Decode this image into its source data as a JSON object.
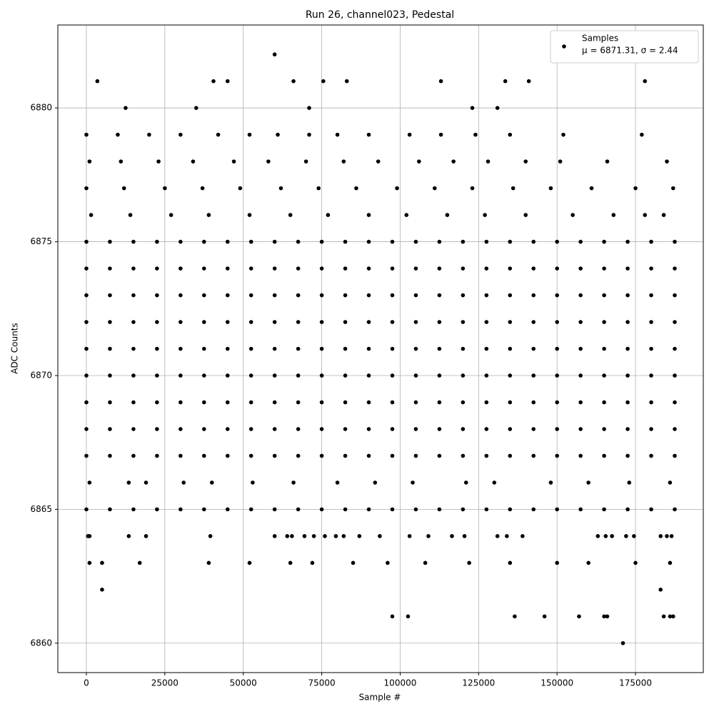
{
  "chart_data": {
    "type": "scatter",
    "title": "Run 26, channel023, Pedestal",
    "xlabel": "Sample #",
    "ylabel": "ADC Counts",
    "xlim": [
      -9100,
      196600
    ],
    "ylim": [
      6858.9,
      6883.1
    ],
    "xticks": [
      0,
      25000,
      50000,
      75000,
      100000,
      125000,
      150000,
      175000
    ],
    "yticks": [
      6860,
      6865,
      6870,
      6875,
      6880
    ],
    "grid": true,
    "legend": "upper right",
    "legend_note": "μ = 6871.31, σ = 2.44",
    "series": [
      {
        "name": "Samples",
        "color": "#000000",
        "x": [
          0,
          7500,
          15000,
          22500,
          30000,
          37500,
          45000,
          52500,
          60000,
          67500,
          75000,
          82500,
          90000,
          97500,
          105000,
          112500,
          120000,
          127500,
          135000,
          142500,
          150000,
          157500,
          165000,
          172500,
          180000,
          187500,
          0,
          7500,
          15000,
          22500,
          30000,
          37500,
          45000,
          52500,
          60000,
          67500,
          75000,
          82500,
          90000,
          97500,
          105000,
          112500,
          120000,
          127500,
          135000,
          142500,
          150000,
          157500,
          165000,
          172500,
          180000,
          187500,
          0,
          7500,
          15000,
          22500,
          30000,
          37500,
          45000,
          52500,
          60000,
          67500,
          75000,
          82500,
          90000,
          97500,
          105000,
          112500,
          120000,
          127500,
          135000,
          142500,
          150000,
          157500,
          165000,
          172500,
          180000,
          187500,
          0,
          7500,
          15000,
          22500,
          30000,
          37500,
          45000,
          52500,
          60000,
          67500,
          75000,
          82500,
          90000,
          97500,
          105000,
          112500,
          120000,
          127500,
          135000,
          142500,
          150000,
          157500,
          165000,
          172500,
          180000,
          187500,
          0,
          7500,
          15000,
          22500,
          30000,
          37500,
          45000,
          52500,
          60000,
          67500,
          75000,
          82500,
          90000,
          97500,
          105000,
          112500,
          120000,
          127500,
          135000,
          142500,
          150000,
          157500,
          165000,
          172500,
          180000,
          187500,
          0,
          7500,
          15000,
          22500,
          30000,
          37500,
          45000,
          52500,
          60000,
          67500,
          75000,
          82500,
          90000,
          97500,
          105000,
          112500,
          120000,
          127500,
          135000,
          142500,
          150000,
          157500,
          165000,
          172500,
          180000,
          187500,
          0,
          7500,
          15000,
          22500,
          30000,
          37500,
          45000,
          52500,
          60000,
          67500,
          75000,
          82500,
          90000,
          97500,
          105000,
          112500,
          120000,
          127500,
          135000,
          142500,
          150000,
          157500,
          165000,
          172500,
          180000,
          187500,
          0,
          7500,
          15000,
          22500,
          30000,
          37500,
          45000,
          52500,
          60000,
          67500,
          75000,
          82500,
          90000,
          97500,
          105000,
          112500,
          120000,
          127500,
          135000,
          142500,
          150000,
          157500,
          165000,
          172500,
          180000,
          187500,
          0,
          7500,
          15000,
          22500,
          30000,
          37500,
          45000,
          52500,
          60000,
          67500,
          75000,
          82500,
          90000,
          97500,
          105000,
          112500,
          120000,
          127500,
          135000,
          142500,
          150000,
          157500,
          165000,
          172500,
          180000,
          187500,
          0,
          7500,
          15000,
          22500,
          30000,
          37500,
          45000,
          52500,
          60000,
          67500,
          75000,
          82500,
          90000,
          97500,
          105000,
          112500,
          120000,
          127500,
          135000,
          142500,
          150000,
          157500,
          165000,
          172500,
          180000,
          187500,
          0,
          10000,
          20000,
          30000,
          42000,
          52000,
          61000,
          71000,
          80000,
          90000,
          103000,
          113000,
          124000,
          135000,
          152000,
          177000,
          1000,
          11000,
          23000,
          34000,
          47000,
          58000,
          70000,
          82000,
          93000,
          106000,
          117000,
          128000,
          140000,
          151000,
          166000,
          185000,
          0,
          12000,
          25000,
          37000,
          49000,
          62000,
          74000,
          86000,
          99000,
          111000,
          123000,
          136000,
          148000,
          161000,
          175000,
          187000,
          1500,
          14000,
          27000,
          39000,
          52000,
          65000,
          77000,
          90000,
          102000,
          115000,
          127000,
          140000,
          155000,
          168000,
          178000,
          184000,
          1000,
          13500,
          19000,
          31000,
          40000,
          53000,
          66000,
          80000,
          92000,
          104000,
          121000,
          130000,
          148000,
          160000,
          173000,
          186000,
          1000,
          5000,
          17000,
          39000,
          52000,
          65000,
          72000,
          85000,
          96000,
          108000,
          122000,
          135000,
          150000,
          160000,
          175000,
          186000,
          3500,
          12500,
          35000,
          40500,
          45000,
          60000,
          66000,
          71000,
          75500,
          83000,
          113000,
          123000,
          131000,
          133500,
          141000,
          178000,
          5000,
          183000,
          171000,
          97500,
          102500,
          136500,
          146000,
          157000,
          165000,
          166000,
          184000,
          186000,
          187000,
          500,
          1000,
          13500,
          19000,
          39500,
          60000,
          64000,
          65500,
          69500,
          72500,
          76000,
          79500,
          82000,
          87000,
          93500,
          103000,
          109000,
          116500,
          120500,
          131000,
          134000,
          139000,
          163000,
          165500,
          167500,
          172000,
          174500,
          183000,
          185000,
          186500
        ],
        "y": [
          6875,
          6875,
          6875,
          6875,
          6875,
          6875,
          6875,
          6875,
          6875,
          6875,
          6875,
          6875,
          6875,
          6875,
          6875,
          6875,
          6875,
          6875,
          6875,
          6875,
          6875,
          6875,
          6875,
          6875,
          6875,
          6875,
          6874,
          6874,
          6874,
          6874,
          6874,
          6874,
          6874,
          6874,
          6874,
          6874,
          6874,
          6874,
          6874,
          6874,
          6874,
          6874,
          6874,
          6874,
          6874,
          6874,
          6874,
          6874,
          6874,
          6874,
          6874,
          6874,
          6873,
          6873,
          6873,
          6873,
          6873,
          6873,
          6873,
          6873,
          6873,
          6873,
          6873,
          6873,
          6873,
          6873,
          6873,
          6873,
          6873,
          6873,
          6873,
          6873,
          6873,
          6873,
          6873,
          6873,
          6873,
          6873,
          6872,
          6872,
          6872,
          6872,
          6872,
          6872,
          6872,
          6872,
          6872,
          6872,
          6872,
          6872,
          6872,
          6872,
          6872,
          6872,
          6872,
          6872,
          6872,
          6872,
          6872,
          6872,
          6872,
          6872,
          6872,
          6872,
          6871,
          6871,
          6871,
          6871,
          6871,
          6871,
          6871,
          6871,
          6871,
          6871,
          6871,
          6871,
          6871,
          6871,
          6871,
          6871,
          6871,
          6871,
          6871,
          6871,
          6871,
          6871,
          6871,
          6871,
          6871,
          6871,
          6870,
          6870,
          6870,
          6870,
          6870,
          6870,
          6870,
          6870,
          6870,
          6870,
          6870,
          6870,
          6870,
          6870,
          6870,
          6870,
          6870,
          6870,
          6870,
          6870,
          6870,
          6870,
          6870,
          6870,
          6870,
          6870,
          6869,
          6869,
          6869,
          6869,
          6869,
          6869,
          6869,
          6869,
          6869,
          6869,
          6869,
          6869,
          6869,
          6869,
          6869,
          6869,
          6869,
          6869,
          6869,
          6869,
          6869,
          6869,
          6869,
          6869,
          6869,
          6869,
          6868,
          6868,
          6868,
          6868,
          6868,
          6868,
          6868,
          6868,
          6868,
          6868,
          6868,
          6868,
          6868,
          6868,
          6868,
          6868,
          6868,
          6868,
          6868,
          6868,
          6868,
          6868,
          6868,
          6868,
          6868,
          6868,
          6867,
          6867,
          6867,
          6867,
          6867,
          6867,
          6867,
          6867,
          6867,
          6867,
          6867,
          6867,
          6867,
          6867,
          6867,
          6867,
          6867,
          6867,
          6867,
          6867,
          6867,
          6867,
          6867,
          6867,
          6867,
          6867,
          6865,
          6865,
          6865,
          6865,
          6865,
          6865,
          6865,
          6865,
          6865,
          6865,
          6865,
          6865,
          6865,
          6865,
          6865,
          6865,
          6865,
          6865,
          6865,
          6865,
          6865,
          6865,
          6865,
          6865,
          6865,
          6865,
          6879,
          6879,
          6879,
          6879,
          6879,
          6879,
          6879,
          6879,
          6879,
          6879,
          6879,
          6879,
          6879,
          6879,
          6879,
          6879,
          6878,
          6878,
          6878,
          6878,
          6878,
          6878,
          6878,
          6878,
          6878,
          6878,
          6878,
          6878,
          6878,
          6878,
          6878,
          6878,
          6877,
          6877,
          6877,
          6877,
          6877,
          6877,
          6877,
          6877,
          6877,
          6877,
          6877,
          6877,
          6877,
          6877,
          6877,
          6877,
          6876,
          6876,
          6876,
          6876,
          6876,
          6876,
          6876,
          6876,
          6876,
          6876,
          6876,
          6876,
          6876,
          6876,
          6876,
          6876,
          6866,
          6866,
          6866,
          6866,
          6866,
          6866,
          6866,
          6866,
          6866,
          6866,
          6866,
          6866,
          6866,
          6866,
          6866,
          6866,
          6863,
          6863,
          6863,
          6863,
          6863,
          6863,
          6863,
          6863,
          6863,
          6863,
          6863,
          6863,
          6863,
          6863,
          6863,
          6863,
          6881,
          6880,
          6880,
          6881,
          6881,
          6882,
          6881,
          6880,
          6881,
          6881,
          6881,
          6880,
          6880,
          6881,
          6881,
          6881,
          6862,
          6862,
          6860,
          6861,
          6861,
          6861,
          6861,
          6861,
          6861,
          6861,
          6861,
          6861,
          6861,
          6864,
          6864,
          6864,
          6864,
          6864,
          6864,
          6864,
          6864,
          6864,
          6864,
          6864,
          6864,
          6864,
          6864,
          6864,
          6864,
          6864,
          6864,
          6864,
          6864,
          6864,
          6864,
          6864,
          6864,
          6864,
          6864,
          6864,
          6864,
          6864,
          6864
        ]
      }
    ]
  }
}
